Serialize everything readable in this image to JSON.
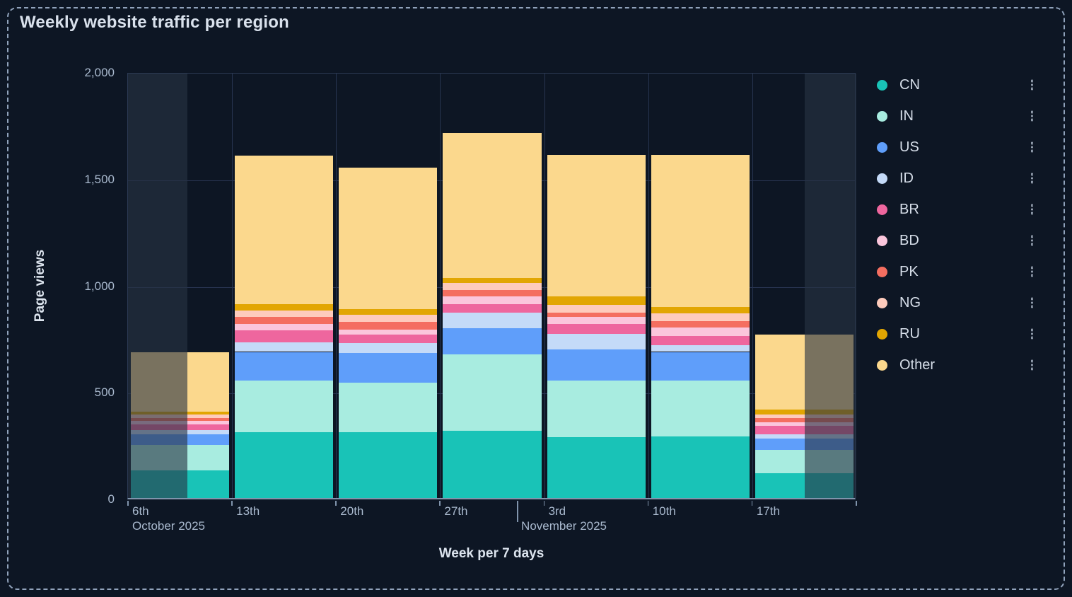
{
  "panel": {
    "title": "Weekly website traffic per region"
  },
  "y_axis": {
    "label": "Page views",
    "tick_labels": [
      "2,000",
      "1,500",
      "1,000",
      "500",
      "0"
    ]
  },
  "x_axis": {
    "label": "Week per 7 days",
    "tick_labels": [
      "6th",
      "13th",
      "20th",
      "27th",
      "3rd",
      "10th",
      "17th"
    ],
    "month_labels": [
      "October 2025",
      "November 2025"
    ]
  },
  "legend": {
    "position": "right",
    "menu_icon": "kebab-menu-icon"
  },
  "colors": {
    "page_bg": "#0d1624",
    "panel_border": "#91a3bc",
    "gridline": "#273450",
    "plot_border": "#2c3a54",
    "axis_line": "#8094ac",
    "heading_text": "#d9e1ec",
    "tick_text": "#a9b9ce",
    "legend_text": "#d6dee9",
    "dim_overlay": "rgba(41,52,67,0.62)"
  },
  "chart_data": {
    "type": "bar",
    "stacked": true,
    "title": "Weekly website traffic per region",
    "xlabel": "Week per 7 days",
    "ylabel": "Page views",
    "ylim": [
      0,
      2000
    ],
    "yticks": [
      0,
      500,
      1000,
      1500,
      2000
    ],
    "grid": true,
    "legend_position": "right",
    "categories": [
      "6th Oct 2025",
      "13th Oct 2025",
      "20th Oct 2025",
      "27th Oct 2025",
      "3rd Nov 2025",
      "10th Nov 2025",
      "17th Nov 2025"
    ],
    "series": [
      {
        "name": "CN",
        "color": "#19c3b7",
        "values": [
          130,
          310,
          310,
          315,
          285,
          290,
          115
        ]
      },
      {
        "name": "IN",
        "color": "#a8ece0",
        "values": [
          120,
          240,
          230,
          360,
          265,
          260,
          110
        ]
      },
      {
        "name": "US",
        "color": "#5f9efa",
        "values": [
          50,
          135,
          140,
          120,
          145,
          135,
          55
        ]
      },
      {
        "name": "ID",
        "color": "#c4daf8",
        "values": [
          20,
          45,
          45,
          75,
          75,
          30,
          20
        ]
      },
      {
        "name": "BR",
        "color": "#ee669e",
        "values": [
          25,
          55,
          40,
          40,
          45,
          45,
          40
        ]
      },
      {
        "name": "BD",
        "color": "#fbc6dc",
        "values": [
          15,
          30,
          25,
          35,
          35,
          40,
          15
        ]
      },
      {
        "name": "PK",
        "color": "#f46e60",
        "values": [
          15,
          35,
          35,
          30,
          20,
          30,
          20
        ]
      },
      {
        "name": "NG",
        "color": "#fecbbc",
        "values": [
          15,
          30,
          35,
          35,
          35,
          35,
          15
        ]
      },
      {
        "name": "RU",
        "color": "#e2a602",
        "values": [
          15,
          30,
          25,
          20,
          40,
          30,
          25
        ]
      },
      {
        "name": "Other",
        "color": "#fbd88d",
        "values": [
          280,
          695,
          665,
          680,
          665,
          715,
          350
        ]
      }
    ],
    "bar_totals": [
      685,
      1605,
      1550,
      1710,
      1610,
      1610,
      765
    ],
    "dimmed_selection": {
      "note": "regions outside current selection are dimmed",
      "left_fraction": [
        0,
        0.0816
      ],
      "right_fraction": [
        0.929,
        1
      ],
      "month_divider_fraction": 0.535
    }
  }
}
